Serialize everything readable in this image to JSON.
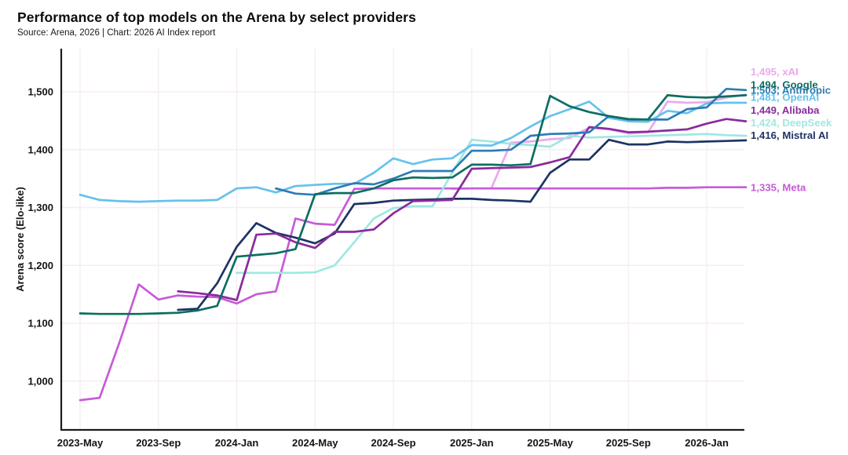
{
  "header": {
    "title": "Performance of top models on the Arena by select providers",
    "source_line": "Source: Arena, 2026 | Chart: 2026 AI Index report"
  },
  "chart_data": {
    "type": "line",
    "title": "Performance of top models on the Arena by select providers",
    "subtitle": "Source: Arena, 2026 | Chart: 2026 AI Index report",
    "xlabel": "",
    "ylabel": "Arena score (Elo-like)",
    "grid": true,
    "grid_color": "#f6edf4",
    "axis_color": "#1c1c1c",
    "background_color": "#ffffff",
    "legend_position": "end-of-line-right",
    "ylim": [
      915,
      1575
    ],
    "y_ticks": [
      1000,
      1100,
      1200,
      1300,
      1400,
      1500
    ],
    "y_tick_labels": [
      "1,000",
      "1,100",
      "1,200",
      "1,300",
      "1,400",
      "1,500"
    ],
    "x_tick_labels": [
      "2023-May",
      "2023-Sep",
      "2024-Jan",
      "2024-May",
      "2024-Sep",
      "2025-Jan",
      "2025-May",
      "2025-Sep",
      "2026-Jan"
    ],
    "x_tick_month_index": [
      0,
      4,
      8,
      12,
      16,
      20,
      24,
      28,
      32
    ],
    "months": [
      "2023-May",
      "2023-Jun",
      "2023-Jul",
      "2023-Aug",
      "2023-Sep",
      "2023-Oct",
      "2023-Nov",
      "2023-Dec",
      "2024-Jan",
      "2024-Feb",
      "2024-Mar",
      "2024-Apr",
      "2024-May",
      "2024-Jun",
      "2024-Jul",
      "2024-Aug",
      "2024-Sep",
      "2024-Oct",
      "2024-Nov",
      "2024-Dec",
      "2025-Jan",
      "2025-Feb",
      "2025-Mar",
      "2025-Apr",
      "2025-May",
      "2025-Jun",
      "2025-Jul",
      "2025-Aug",
      "2025-Sep",
      "2025-Oct",
      "2025-Nov",
      "2025-Dec",
      "2026-Jan",
      "2026-Feb",
      "2026-Mar"
    ],
    "series": [
      {
        "name": "Anthropic",
        "color": "#2d7bb6",
        "end_label": "1,503, Anthropic",
        "final_value": 1503,
        "values": [
          null,
          null,
          null,
          null,
          null,
          null,
          null,
          null,
          null,
          null,
          1333,
          1324,
          1322,
          1333,
          1342,
          1340,
          1350,
          1363,
          1363,
          1363,
          1398,
          1398,
          1400,
          1424,
          1427,
          1428,
          1430,
          1458,
          1452,
          1452,
          1452,
          1470,
          1473,
          1505,
          1503
        ]
      },
      {
        "name": "xAI",
        "color": "#eca9ed",
        "end_label": "1,495, xAI",
        "final_value": 1495,
        "values": [
          null,
          null,
          null,
          null,
          null,
          null,
          null,
          null,
          null,
          null,
          null,
          null,
          null,
          null,
          null,
          null,
          null,
          null,
          null,
          1332,
          1333,
          1333,
          1412,
          1414,
          1418,
          1420,
          1438,
          1435,
          1428,
          1430,
          1483,
          1481,
          1482,
          1490,
          1495
        ]
      },
      {
        "name": "Google",
        "color": "#0d6e60",
        "end_label": "1,494, Google",
        "final_value": 1494,
        "values": [
          1117,
          1116,
          1116,
          1116,
          1117,
          1118,
          1122,
          1130,
          1215,
          1218,
          1221,
          1228,
          1323,
          1325,
          1325,
          1333,
          1347,
          1352,
          1351,
          1352,
          1374,
          1374,
          1373,
          1375,
          1493,
          1475,
          1465,
          1458,
          1453,
          1452,
          1494,
          1491,
          1490,
          1492,
          1494
        ]
      },
      {
        "name": "OpenAI",
        "color": "#64c2ec",
        "end_label": "1,481, OpenAI",
        "final_value": 1481,
        "values": [
          1322,
          1313,
          1311,
          1310,
          1311,
          1312,
          1312,
          1313,
          1333,
          1335,
          1326,
          1337,
          1339,
          1341,
          1341,
          1360,
          1385,
          1375,
          1383,
          1385,
          1408,
          1407,
          1420,
          1440,
          1458,
          1470,
          1483,
          1455,
          1449,
          1448,
          1467,
          1463,
          1480,
          1481,
          1481
        ]
      },
      {
        "name": "Alibaba",
        "color": "#8a2b9d",
        "end_label": "1,449, Alibaba",
        "final_value": 1449,
        "values": [
          null,
          null,
          null,
          null,
          null,
          1155,
          1152,
          1148,
          1140,
          1253,
          1255,
          1240,
          1230,
          1258,
          1258,
          1262,
          1290,
          1311,
          1312,
          1313,
          1367,
          1368,
          1369,
          1370,
          1378,
          1387,
          1439,
          1436,
          1430,
          1431,
          1433,
          1435,
          1445,
          1453,
          1449
        ]
      },
      {
        "name": "DeepSeek",
        "color": "#9fe8e0",
        "end_label": "1,424, DeepSeek",
        "final_value": 1424,
        "values": [
          null,
          null,
          null,
          null,
          null,
          null,
          null,
          null,
          1187,
          1187,
          1187,
          1187,
          1188,
          1200,
          1240,
          1281,
          1299,
          1302,
          1302,
          1360,
          1417,
          1414,
          1410,
          1408,
          1405,
          1424,
          1421,
          1422,
          1423,
          1424,
          1425,
          1426,
          1427,
          1425,
          1424
        ]
      },
      {
        "name": "Mistral AI",
        "color": "#1e3364",
        "end_label": "1,416, Mistral AI",
        "final_value": 1416,
        "values": [
          null,
          null,
          null,
          null,
          null,
          1123,
          1125,
          1169,
          1232,
          1273,
          1256,
          1248,
          1238,
          1255,
          1306,
          1308,
          1312,
          1313,
          1314,
          1315,
          1315,
          1313,
          1312,
          1310,
          1360,
          1383,
          1383,
          1417,
          1409,
          1409,
          1414,
          1413,
          1414,
          1415,
          1416
        ]
      },
      {
        "name": "Meta",
        "color": "#c75bd8",
        "end_label": "1,335, Meta",
        "final_value": 1335,
        "values": [
          967,
          971,
          1066,
          1167,
          1141,
          1148,
          1146,
          1145,
          1134,
          1150,
          1155,
          1281,
          1272,
          1270,
          1332,
          1333,
          1333,
          1333,
          1333,
          1333,
          1333,
          1333,
          1333,
          1333,
          1333,
          1333,
          1333,
          1333,
          1333,
          1333,
          1334,
          1334,
          1335,
          1335,
          1335
        ]
      }
    ]
  }
}
